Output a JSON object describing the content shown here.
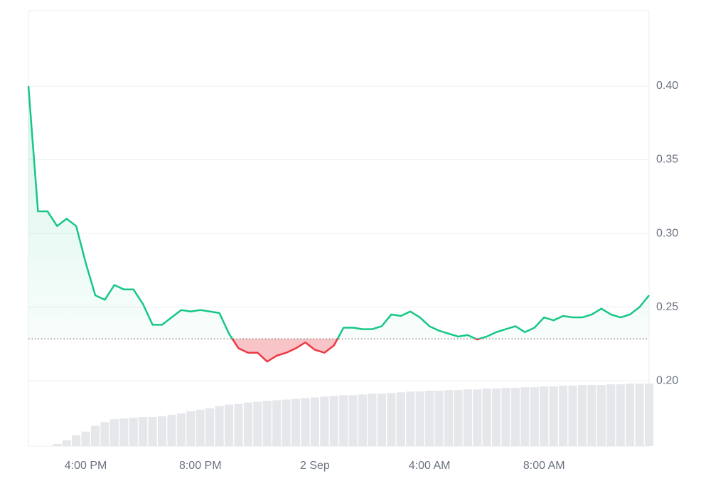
{
  "chart_data": {
    "type": "line",
    "categories": [
      null,
      null,
      null,
      null,
      null,
      null,
      "4:00 PM",
      null,
      null,
      null,
      null,
      null,
      null,
      null,
      null,
      null,
      null,
      null,
      "8:00 PM",
      null,
      null,
      null,
      null,
      null,
      null,
      null,
      null,
      null,
      null,
      null,
      "2 Sep",
      null,
      null,
      null,
      null,
      null,
      null,
      null,
      null,
      null,
      null,
      null,
      "4:00 AM",
      null,
      null,
      null,
      null,
      null,
      null,
      null,
      null,
      null,
      null,
      null,
      "8:00 AM",
      null,
      null,
      null,
      null,
      null,
      null,
      null,
      null,
      null,
      null,
      null
    ],
    "values": [
      0.4,
      0.315,
      0.315,
      0.305,
      0.31,
      0.305,
      0.28,
      0.258,
      0.255,
      0.265,
      0.262,
      0.262,
      0.252,
      0.238,
      0.238,
      0.243,
      0.248,
      0.247,
      0.248,
      0.247,
      0.246,
      0.232,
      0.222,
      0.219,
      0.219,
      0.213,
      0.217,
      0.219,
      0.222,
      0.226,
      0.221,
      0.219,
      0.224,
      0.236,
      0.236,
      0.235,
      0.235,
      0.237,
      0.245,
      0.244,
      0.247,
      0.243,
      0.237,
      0.234,
      0.232,
      0.23,
      0.231,
      0.228,
      0.23,
      0.233,
      0.235,
      0.237,
      0.233,
      0.236,
      0.243,
      0.241,
      0.244,
      0.243,
      0.243,
      0.245,
      0.249,
      0.245,
      0.243,
      0.245,
      0.25,
      0.258
    ],
    "baseline": 0.2285,
    "up_color": "#16c784",
    "down_color": "#ea3943",
    "volume": {
      "color": "#e5e7eb",
      "values": [
        0,
        0,
        0,
        3,
        8,
        15,
        20,
        28,
        33,
        37,
        38,
        39,
        40,
        40,
        41,
        43,
        45,
        48,
        50,
        52,
        55,
        57,
        58,
        60,
        61,
        62,
        63,
        64,
        65,
        66,
        67,
        68,
        69,
        70,
        70,
        71,
        72,
        72,
        73,
        74,
        75,
        75,
        76,
        76,
        77,
        77,
        78,
        78,
        79,
        79,
        80,
        80,
        81,
        81,
        82,
        82,
        83,
        83,
        84,
        84,
        84,
        85,
        85,
        86,
        86,
        86
      ]
    },
    "ylim": [
      0.1556,
      0.4512
    ],
    "yticks": [
      {
        "value": 0.2,
        "label": "0.20"
      },
      {
        "value": 0.25,
        "label": "0.25"
      },
      {
        "value": 0.3,
        "label": "0.30"
      },
      {
        "value": 0.35,
        "label": "0.35"
      },
      {
        "value": 0.4,
        "label": "0.40"
      }
    ],
    "grid": true
  }
}
